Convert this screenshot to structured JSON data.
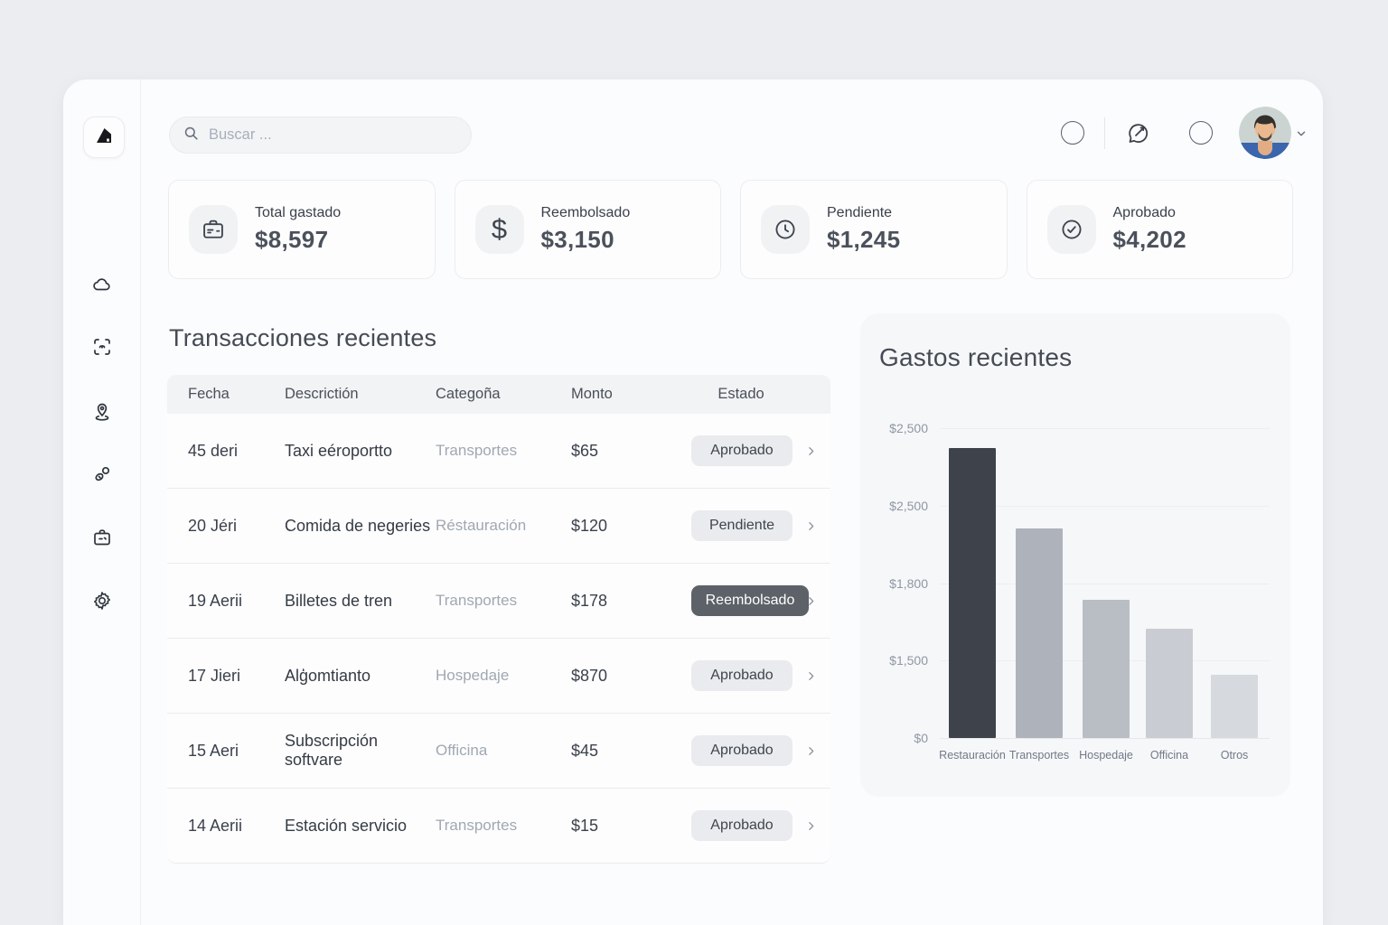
{
  "topbar": {
    "search": {
      "placeholder": "Buscar ...",
      "icon": "search-icon"
    },
    "action_icons": [
      "ring-icon",
      "chat-bubble-icon",
      "ring-icon"
    ],
    "avatar": {
      "alt": "user avatar photo",
      "chevron": "chevron-down-icon"
    }
  },
  "sidebar": {
    "logo_icon": "logo-mark-icon",
    "items": [
      {
        "icon": "cloud-icon"
      },
      {
        "icon": "scan-frame-icon"
      },
      {
        "icon": "map-pin-icon"
      },
      {
        "icon": "link-icon"
      },
      {
        "icon": "briefcase-icon"
      },
      {
        "icon": "gear-icon"
      }
    ]
  },
  "stats": [
    {
      "label": "Total gastado",
      "value": "$8,597",
      "icon": "briefcase-icon"
    },
    {
      "label": "Reembolsado",
      "value": "$3,150",
      "icon": "dollar-icon"
    },
    {
      "label": "Pendiente",
      "value": "$1,245",
      "icon": "clock-icon"
    },
    {
      "label": "Aprobado",
      "value": "$4,202",
      "icon": "check-circle-icon"
    }
  ],
  "transactions": {
    "title": "Transacciones recientes",
    "columns": {
      "fecha": "Fecha",
      "descripcion": "Descrictión",
      "categoria": "Categoña",
      "monto": "Monto",
      "estado": "Estado"
    },
    "dark_badge_status": "Reembolsado",
    "rows": [
      {
        "fecha": "45 deri",
        "descripcion": "Taxi eéroportto",
        "categoria": "Transportes",
        "monto": "$65",
        "estado": "Aprobado"
      },
      {
        "fecha": "20 Jéri",
        "descripcion": "Comida de negeries",
        "categoria": "Réstauración",
        "monto": "$120",
        "estado": "Pendiente"
      },
      {
        "fecha": "19 Aerii",
        "descripcion": "Billetes de tren",
        "categoria": "Transportes",
        "monto": "$178",
        "estado": "Reembolsado"
      },
      {
        "fecha": "17 Jieri",
        "descripcion": "Alģomtianto",
        "categoria": "Hospedaje",
        "monto": "$870",
        "estado": "Aprobado"
      },
      {
        "fecha": "15 Aeri",
        "descripcion": "Subscripción softvare",
        "categoria": "Officina",
        "monto": "$45",
        "estado": "Aprobado"
      },
      {
        "fecha": "14 Aerii",
        "descripcion": "Estación servicio",
        "categoria": "Transportes",
        "monto": "$15",
        "estado": "Aprobado"
      }
    ]
  },
  "chart_data": {
    "type": "bar",
    "title": "Gastos recientes",
    "categories": [
      "Restauración",
      "Transportes",
      "Hospedaje",
      "Officina",
      "Otros"
    ],
    "values": [
      2340,
      1690,
      1115,
      880,
      510
    ],
    "y_ticks": [
      "$2,500",
      "$2,500",
      "$1,800",
      "$1,500",
      "$0"
    ],
    "ylim": [
      0,
      2500
    ],
    "bar_colors": [
      "#3e434b",
      "#aeb3bb",
      "#b9bdc4",
      "#c9cdd3",
      "#d6d9de"
    ],
    "xlabel": "",
    "ylabel": "",
    "grid": true,
    "legend": false
  },
  "colors": {
    "page_bg": "#ecedf0",
    "panel_bg": "#fbfcfd",
    "card_bg": "#fdfdfe",
    "badge_bg": "#e9ebee",
    "badge_dark_bg": "#5d6269",
    "bar_primary": "#3e434b",
    "text_primary": "#3b414b",
    "text_muted": "#9aa3ae"
  }
}
